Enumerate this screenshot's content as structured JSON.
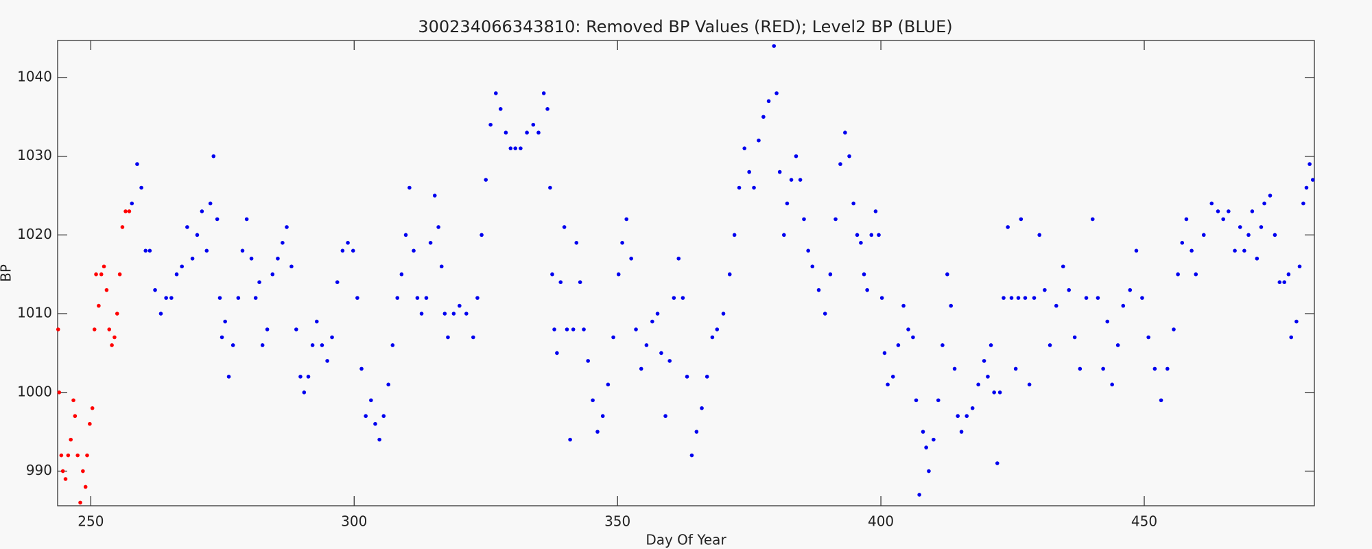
{
  "chart_data": {
    "type": "scatter",
    "title": "300234066343810: Removed BP Values (RED); Level2 BP (BLUE)",
    "x_label": "Day Of Year",
    "y_label": "BP",
    "xlim": [
      243.7,
      482.3
    ],
    "ylim": [
      985.6,
      1044.7
    ],
    "xticks": [
      250,
      300,
      350,
      400,
      450
    ],
    "yticks": [
      990,
      1000,
      1010,
      1020,
      1030,
      1040
    ],
    "series": [
      {
        "color": "#ff0000",
        "x": [
          243.8,
          244.0,
          244.4,
          244.7,
          245.2,
          245.7,
          246.2,
          246.7,
          247.0,
          247.5,
          248.0,
          248.5,
          249.0,
          249.3,
          249.8,
          250.3,
          250.7,
          251.0,
          251.5,
          252.0,
          252.5,
          253.0,
          253.5,
          254.0,
          254.5,
          255.0,
          255.5,
          256.0,
          256.6,
          257.3
        ],
        "values": [
          1008,
          1000,
          992,
          990,
          989,
          992,
          994,
          999,
          997,
          992,
          986,
          990,
          988,
          992,
          996,
          998,
          1008,
          1015,
          1011,
          1015,
          1016,
          1013,
          1008,
          1006,
          1007,
          1010,
          1015,
          1021,
          1023,
          1023
        ]
      },
      {
        "color": "#0000ee",
        "x": [
          257.8,
          258.8,
          259.6,
          260.4,
          261.2,
          262.2,
          263.3,
          264.3,
          265.3,
          266.3,
          267.3,
          268.3,
          269.3,
          270.2,
          271.1,
          272.0,
          272.7,
          273.3,
          274.0,
          274.5,
          274.9,
          275.5,
          276.2,
          277.0,
          278.0,
          278.8,
          279.6,
          280.5,
          281.3,
          282.0,
          282.6,
          283.5,
          284.5,
          285.5,
          286.4,
          287.2,
          288.1,
          289.0,
          289.8,
          290.5,
          291.3,
          292.1,
          292.9,
          293.9,
          294.9,
          295.8,
          296.8,
          297.8,
          298.8,
          299.8,
          300.6,
          301.4,
          302.2,
          303.2,
          304.0,
          304.8,
          305.6,
          306.5,
          307.3,
          308.2,
          309.0,
          309.8,
          310.5,
          311.3,
          312.0,
          312.8,
          313.7,
          314.5,
          315.3,
          316.0,
          316.6,
          317.2,
          317.8,
          318.9,
          320.0,
          321.3,
          322.6,
          323.4,
          324.2,
          325.0,
          325.9,
          326.9,
          327.8,
          328.8,
          329.7,
          330.6,
          331.6,
          332.8,
          334.0,
          335.0,
          336.0,
          336.7,
          337.2,
          337.6,
          338.0,
          338.5,
          339.2,
          339.9,
          340.4,
          341.0,
          341.6,
          342.2,
          342.9,
          343.6,
          344.4,
          345.3,
          346.2,
          347.2,
          348.2,
          349.2,
          350.2,
          350.9,
          351.7,
          352.6,
          353.5,
          354.5,
          355.5,
          356.6,
          357.6,
          358.3,
          359.1,
          359.9,
          360.7,
          361.6,
          362.4,
          363.2,
          364.1,
          365.0,
          366.0,
          367.0,
          368.0,
          368.9,
          370.1,
          371.3,
          372.2,
          373.1,
          374.1,
          375.0,
          375.9,
          376.8,
          377.7,
          378.7,
          379.7,
          380.2,
          380.8,
          381.6,
          382.2,
          383.0,
          383.9,
          384.7,
          385.4,
          386.2,
          387.0,
          388.2,
          389.4,
          390.4,
          391.4,
          392.3,
          393.2,
          394.0,
          394.8,
          395.5,
          396.2,
          396.8,
          397.4,
          398.2,
          399.0,
          399.6,
          400.2,
          400.7,
          401.3,
          402.3,
          403.3,
          404.3,
          405.2,
          406.1,
          406.7,
          407.3,
          408.0,
          408.6,
          409.1,
          410.0,
          410.9,
          411.7,
          412.6,
          413.3,
          414.0,
          414.6,
          415.3,
          416.3,
          417.4,
          418.5,
          419.6,
          420.3,
          420.9,
          421.5,
          422.1,
          422.6,
          423.3,
          424.1,
          424.8,
          425.6,
          426.1,
          426.6,
          427.4,
          428.2,
          429.1,
          430.1,
          431.1,
          432.1,
          433.3,
          434.6,
          435.7,
          436.8,
          437.8,
          439.0,
          440.2,
          441.2,
          442.2,
          443.0,
          443.9,
          445.0,
          446.0,
          447.3,
          448.5,
          449.6,
          450.8,
          452.0,
          453.2,
          454.4,
          455.6,
          456.4,
          457.2,
          458.0,
          459.0,
          459.8,
          461.3,
          462.8,
          464.0,
          465.0,
          466.0,
          467.2,
          468.2,
          469.0,
          469.8,
          470.5,
          471.4,
          472.2,
          472.8,
          473.9,
          474.8,
          475.7,
          476.6,
          477.4,
          477.9,
          478.9,
          479.5,
          480.2,
          480.8,
          481.4,
          482.0
        ],
        "values": [
          1024,
          1029,
          1026,
          1018,
          1018,
          1013,
          1010,
          1012,
          1012,
          1015,
          1016,
          1021,
          1017,
          1020,
          1023,
          1018,
          1024,
          1030,
          1022,
          1012,
          1007,
          1009,
          1002,
          1006,
          1012,
          1018,
          1022,
          1017,
          1012,
          1014,
          1006,
          1008,
          1015,
          1017,
          1019,
          1021,
          1016,
          1008,
          1002,
          1000,
          1002,
          1006,
          1009,
          1006,
          1004,
          1007,
          1014,
          1018,
          1019,
          1018,
          1012,
          1003,
          997,
          999,
          996,
          994,
          997,
          1001,
          1006,
          1012,
          1015,
          1020,
          1026,
          1018,
          1012,
          1010,
          1012,
          1019,
          1025,
          1021,
          1016,
          1010,
          1007,
          1010,
          1011,
          1010,
          1007,
          1012,
          1020,
          1027,
          1034,
          1038,
          1036,
          1033,
          1031,
          1031,
          1031,
          1033,
          1034,
          1033,
          1038,
          1036,
          1026,
          1015,
          1008,
          1005,
          1014,
          1021,
          1008,
          994,
          1008,
          1019,
          1014,
          1008,
          1004,
          999,
          995,
          997,
          1001,
          1007,
          1015,
          1019,
          1022,
          1017,
          1008,
          1003,
          1006,
          1009,
          1010,
          1005,
          997,
          1004,
          1012,
          1017,
          1012,
          1002,
          992,
          995,
          998,
          1002,
          1007,
          1008,
          1010,
          1015,
          1020,
          1026,
          1031,
          1028,
          1026,
          1032,
          1035,
          1037,
          1044,
          1038,
          1028,
          1020,
          1024,
          1027,
          1030,
          1027,
          1022,
          1018,
          1016,
          1013,
          1010,
          1015,
          1022,
          1029,
          1033,
          1030,
          1024,
          1020,
          1019,
          1015,
          1013,
          1020,
          1023,
          1020,
          1012,
          1005,
          1001,
          1002,
          1006,
          1011,
          1008,
          1007,
          999,
          987,
          995,
          993,
          990,
          994,
          999,
          1006,
          1015,
          1011,
          1003,
          997,
          995,
          997,
          998,
          1001,
          1004,
          1002,
          1006,
          1000,
          991,
          1000,
          1012,
          1021,
          1012,
          1003,
          1012,
          1022,
          1012,
          1001,
          1012,
          1020,
          1013,
          1006,
          1011,
          1016,
          1013,
          1007,
          1003,
          1012,
          1022,
          1012,
          1003,
          1009,
          1001,
          1006,
          1011,
          1013,
          1018,
          1012,
          1007,
          1003,
          999,
          1003,
          1008,
          1015,
          1019,
          1022,
          1018,
          1015,
          1020,
          1024,
          1023,
          1022,
          1023,
          1018,
          1021,
          1018,
          1020,
          1023,
          1017,
          1021,
          1024,
          1025,
          1020,
          1014,
          1014,
          1015,
          1007,
          1009,
          1016,
          1024,
          1026,
          1029,
          1027
        ]
      }
    ]
  }
}
